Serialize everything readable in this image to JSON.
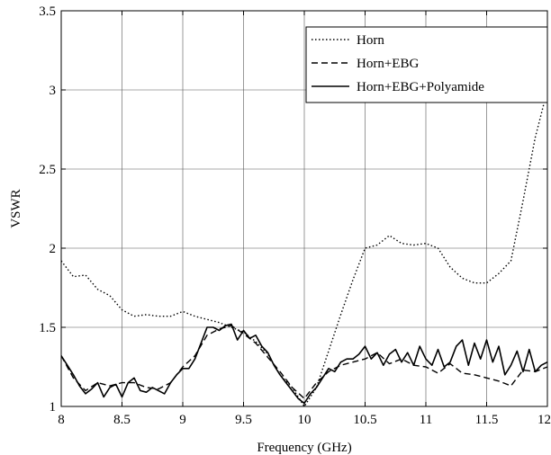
{
  "chart_data": {
    "type": "line",
    "xlabel": "Frequency (GHz)",
    "ylabel": "VSWR",
    "xlim": [
      8,
      12
    ],
    "ylim": [
      1,
      3.5
    ],
    "xticks": [
      "8",
      "8.5",
      "9",
      "9.5",
      "10",
      "10.5",
      "11",
      "11.5",
      "12"
    ],
    "yticks": [
      "1",
      "1.5",
      "2",
      "2.5",
      "3",
      "3.5"
    ],
    "grid": true,
    "legend_position": "top-right",
    "series": [
      {
        "name": "Horn",
        "style": "dotted",
        "color": "#000000",
        "x": [
          8.0,
          8.1,
          8.2,
          8.3,
          8.4,
          8.5,
          8.6,
          8.7,
          8.8,
          8.9,
          9.0,
          9.1,
          9.2,
          9.3,
          9.4,
          9.5,
          9.6,
          9.7,
          9.8,
          9.9,
          10.0,
          10.1,
          10.2,
          10.3,
          10.4,
          10.5,
          10.6,
          10.7,
          10.8,
          10.9,
          11.0,
          11.1,
          11.2,
          11.3,
          11.4,
          11.5,
          11.6,
          11.7,
          11.8,
          11.9,
          12.0
        ],
        "y": [
          1.92,
          1.82,
          1.83,
          1.74,
          1.7,
          1.61,
          1.57,
          1.58,
          1.57,
          1.57,
          1.6,
          1.57,
          1.55,
          1.53,
          1.5,
          1.47,
          1.41,
          1.33,
          1.2,
          1.12,
          1.0,
          1.12,
          1.35,
          1.58,
          1.8,
          2.0,
          2.02,
          2.08,
          2.03,
          2.02,
          2.03,
          2.0,
          1.88,
          1.81,
          1.78,
          1.78,
          1.84,
          1.92,
          2.3,
          2.7,
          3.0
        ]
      },
      {
        "name": "Horn+EBG",
        "style": "dashed",
        "color": "#000000",
        "x": [
          8.0,
          8.1,
          8.2,
          8.3,
          8.4,
          8.5,
          8.6,
          8.7,
          8.8,
          8.9,
          9.0,
          9.1,
          9.2,
          9.3,
          9.4,
          9.5,
          9.6,
          9.7,
          9.8,
          9.9,
          10.0,
          10.1,
          10.2,
          10.3,
          10.4,
          10.5,
          10.6,
          10.7,
          10.8,
          10.9,
          11.0,
          11.1,
          11.2,
          11.3,
          11.4,
          11.5,
          11.6,
          11.7,
          11.8,
          11.9,
          12.0
        ],
        "y": [
          1.32,
          1.18,
          1.1,
          1.15,
          1.13,
          1.15,
          1.15,
          1.12,
          1.11,
          1.15,
          1.25,
          1.32,
          1.45,
          1.49,
          1.51,
          1.46,
          1.4,
          1.31,
          1.22,
          1.12,
          1.05,
          1.15,
          1.22,
          1.26,
          1.28,
          1.3,
          1.34,
          1.27,
          1.3,
          1.26,
          1.25,
          1.21,
          1.27,
          1.21,
          1.2,
          1.18,
          1.16,
          1.13,
          1.23,
          1.22,
          1.25
        ]
      },
      {
        "name": "Horn+EBG+Polyamide",
        "style": "solid",
        "color": "#000000",
        "x": [
          8.0,
          8.05,
          8.1,
          8.15,
          8.2,
          8.25,
          8.3,
          8.35,
          8.4,
          8.45,
          8.5,
          8.55,
          8.6,
          8.65,
          8.7,
          8.75,
          8.8,
          8.85,
          8.9,
          8.95,
          9.0,
          9.05,
          9.1,
          9.15,
          9.2,
          9.25,
          9.3,
          9.35,
          9.4,
          9.45,
          9.5,
          9.55,
          9.6,
          9.65,
          9.7,
          9.75,
          9.8,
          9.85,
          9.9,
          9.95,
          10.0,
          10.05,
          10.1,
          10.15,
          10.2,
          10.25,
          10.3,
          10.35,
          10.4,
          10.45,
          10.5,
          10.55,
          10.6,
          10.65,
          10.7,
          10.75,
          10.8,
          10.85,
          10.9,
          10.95,
          11.0,
          11.05,
          11.1,
          11.15,
          11.2,
          11.25,
          11.3,
          11.35,
          11.4,
          11.45,
          11.5,
          11.55,
          11.6,
          11.65,
          11.7,
          11.75,
          11.8,
          11.85,
          11.9,
          11.95,
          12.0
        ],
        "y": [
          1.32,
          1.26,
          1.2,
          1.13,
          1.08,
          1.11,
          1.15,
          1.06,
          1.12,
          1.14,
          1.06,
          1.15,
          1.18,
          1.1,
          1.09,
          1.12,
          1.1,
          1.08,
          1.15,
          1.2,
          1.24,
          1.24,
          1.3,
          1.4,
          1.5,
          1.5,
          1.48,
          1.51,
          1.52,
          1.42,
          1.48,
          1.43,
          1.45,
          1.38,
          1.34,
          1.26,
          1.2,
          1.15,
          1.1,
          1.05,
          1.02,
          1.08,
          1.12,
          1.18,
          1.24,
          1.22,
          1.28,
          1.3,
          1.3,
          1.33,
          1.38,
          1.3,
          1.34,
          1.26,
          1.33,
          1.36,
          1.28,
          1.34,
          1.26,
          1.38,
          1.3,
          1.26,
          1.36,
          1.25,
          1.28,
          1.38,
          1.42,
          1.26,
          1.4,
          1.3,
          1.42,
          1.28,
          1.38,
          1.2,
          1.26,
          1.35,
          1.22,
          1.36,
          1.22,
          1.26,
          1.28
        ]
      }
    ]
  }
}
